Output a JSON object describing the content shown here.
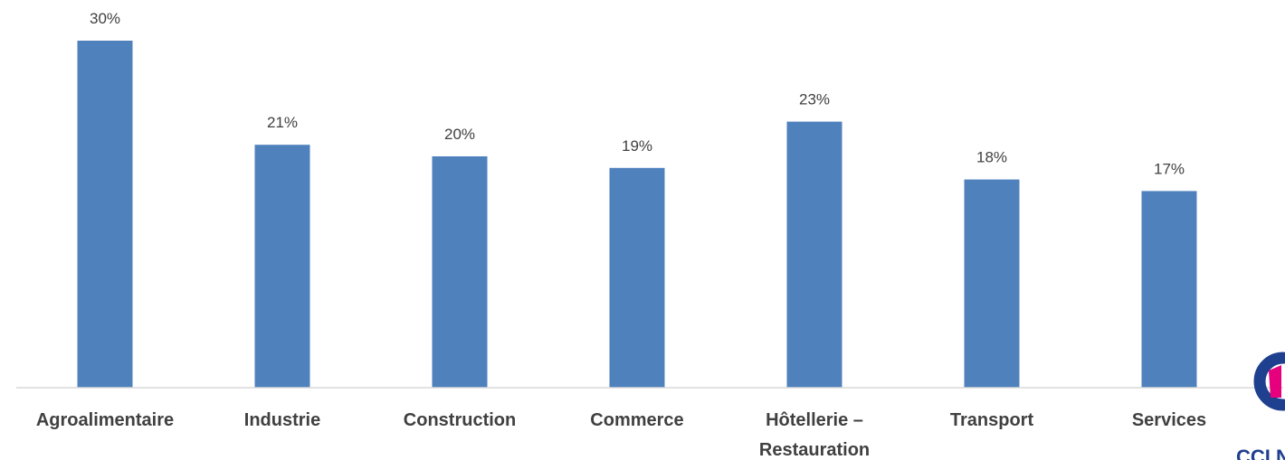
{
  "chart_data": {
    "type": "bar",
    "categories": [
      "Agroalimentaire",
      "Industrie",
      "Construction",
      "Commerce",
      "Hôtellerie – Restauration",
      "Transport",
      "Services"
    ],
    "category_lines": [
      [
        "Agroalimentaire"
      ],
      [
        "Industrie"
      ],
      [
        "Construction"
      ],
      [
        "Commerce"
      ],
      [
        "Hôtellerie –",
        "Restauration"
      ],
      [
        "Transport"
      ],
      [
        "Services"
      ]
    ],
    "values": [
      30,
      21,
      20,
      19,
      23,
      18,
      17
    ],
    "data_labels": [
      "30%",
      "21%",
      "20%",
      "19%",
      "23%",
      "18%",
      "17%"
    ],
    "unit": "%",
    "title": "",
    "xlabel": "",
    "ylabel": "",
    "ylim": [
      0,
      31.8
    ],
    "grid": false,
    "legend": "none",
    "bar_color": "#4f81bd",
    "axis_color": "#d9d9d9",
    "label_color": "#404040"
  },
  "logo": {
    "text": "CCI NOUV",
    "mark_colors": [
      "#1f3f8f",
      "#e6007e"
    ]
  }
}
